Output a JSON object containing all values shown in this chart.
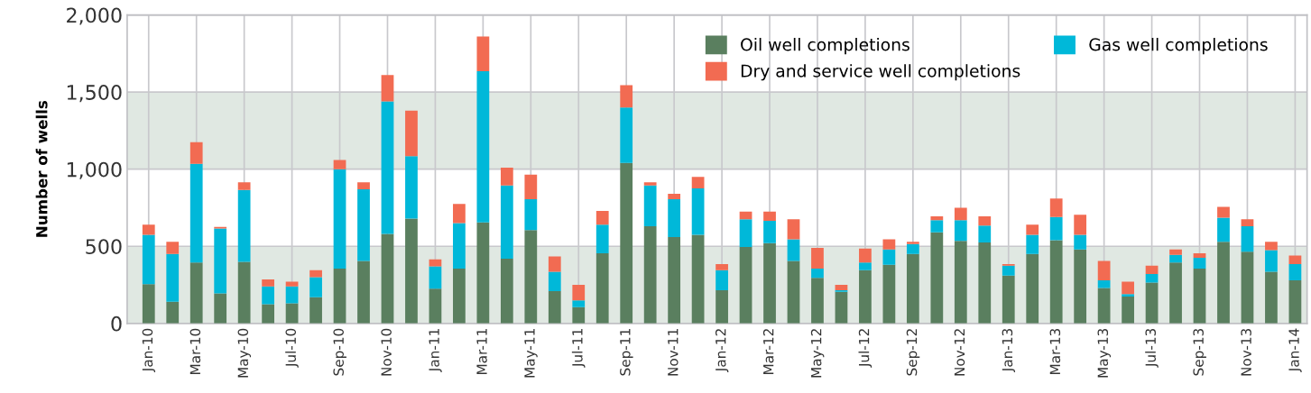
{
  "chart_data": {
    "type": "bar",
    "stacked": true,
    "ylabel": "Number of wells",
    "categories": [
      "Jan-10",
      null,
      "Mar-10",
      null,
      "May-10",
      null,
      "Jul-10",
      null,
      "Sep-10",
      null,
      "Nov-10",
      null,
      "Jan-11",
      null,
      "Mar-11",
      null,
      "May-11",
      null,
      "Jul-11",
      null,
      "Sep-11",
      null,
      "Nov-11",
      null,
      "Jan-12",
      null,
      "Mar-12",
      null,
      "May-12",
      null,
      "Jul-12",
      null,
      "Sep-12",
      null,
      "Nov-12",
      null,
      "Jan-13",
      null,
      "Mar-13",
      null,
      "May-13",
      null,
      "Jul-13",
      null,
      "Sep-13",
      null,
      "Nov-13",
      null,
      "Jan-14"
    ],
    "series": [
      {
        "name": "Oil well completions",
        "color": "#5a7f5f",
        "values": [
          255,
          140,
          395,
          195,
          400,
          125,
          130,
          170,
          355,
          405,
          580,
          680,
          225,
          355,
          655,
          420,
          605,
          210,
          105,
          455,
          1040,
          630,
          560,
          575,
          215,
          495,
          520,
          405,
          295,
          205,
          345,
          380,
          450,
          590,
          535,
          525,
          310,
          450,
          540,
          480,
          230,
          175,
          265,
          395,
          355,
          530,
          465,
          335,
          280
        ]
      },
      {
        "name": "Gas well completions",
        "color": "#00b8d9",
        "values": [
          320,
          310,
          640,
          420,
          465,
          115,
          110,
          130,
          645,
          465,
          860,
          405,
          145,
          295,
          980,
          475,
          200,
          125,
          45,
          185,
          360,
          265,
          245,
          300,
          130,
          180,
          145,
          140,
          60,
          10,
          50,
          100,
          65,
          80,
          135,
          110,
          65,
          125,
          150,
          95,
          50,
          15,
          55,
          50,
          70,
          155,
          165,
          140,
          105
        ]
      },
      {
        "name": "Dry and service well completions",
        "color": "#f26b52",
        "values": [
          65,
          80,
          140,
          10,
          50,
          45,
          30,
          45,
          60,
          45,
          170,
          295,
          45,
          125,
          225,
          115,
          160,
          100,
          100,
          90,
          145,
          20,
          35,
          75,
          40,
          50,
          60,
          130,
          135,
          35,
          90,
          65,
          15,
          25,
          80,
          60,
          10,
          65,
          120,
          130,
          125,
          80,
          55,
          35,
          30,
          70,
          45,
          55,
          55
        ]
      }
    ],
    "ylim": [
      0,
      2000
    ],
    "yticks": [
      0,
      500,
      {
        "value": 1000,
        "label": "1,000"
      },
      {
        "value": 1500,
        "label": "1,500"
      },
      {
        "value": 2000,
        "label": "2,000"
      }
    ],
    "bands": [
      {
        "axis": "y",
        "from": 0,
        "to": 500,
        "color": "#e0e8e2"
      },
      {
        "axis": "y",
        "from": 1000,
        "to": 1500,
        "color": "#e0e8e2"
      }
    ],
    "grid": true,
    "legend": "top right"
  }
}
